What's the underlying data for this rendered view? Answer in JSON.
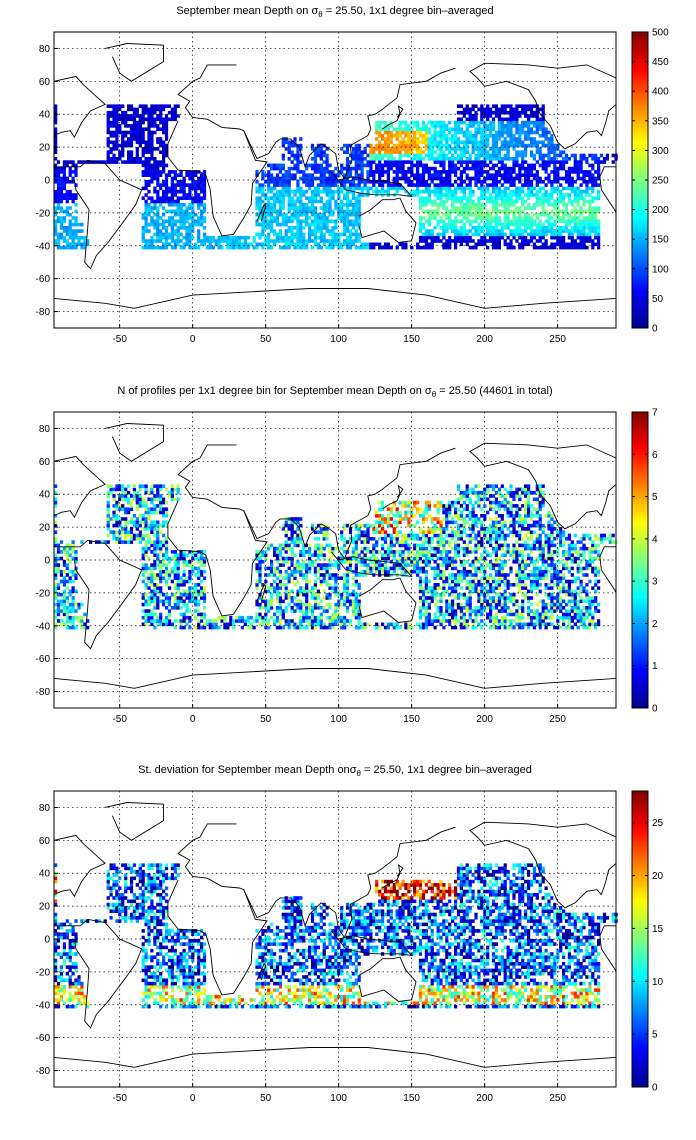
{
  "colors": {
    "jet": [
      "#00008f",
      "#0000ff",
      "#0080ff",
      "#00ffff",
      "#80ff80",
      "#ffff00",
      "#ff8000",
      "#ff0000",
      "#800000"
    ]
  },
  "chart_data": [
    {
      "type": "heatmap",
      "title_pre": "September mean Depth on ",
      "title_sigma": "σ",
      "title_sub": "θ",
      "title_post": " = 25.50, 1x1 degree bin–averaged",
      "xlim": [
        -95,
        290
      ],
      "ylim": [
        -90,
        90
      ],
      "xticks": [
        -50,
        0,
        50,
        100,
        150,
        200,
        250
      ],
      "yticks": [
        80,
        60,
        40,
        20,
        0,
        -20,
        -40,
        -60,
        -80
      ],
      "colorbar": {
        "min": 0,
        "max": 500,
        "ticks": [
          500,
          450,
          400,
          350,
          300,
          250,
          200,
          150,
          100,
          50,
          0
        ]
      },
      "pattern": "mean"
    },
    {
      "type": "heatmap",
      "title_pre": "N of profiles per 1x1 degree bin for September mean Depth on ",
      "title_sigma": "σ",
      "title_sub": "θ",
      "title_post": " = 25.50 (44601 in total)",
      "xlim": [
        -95,
        290
      ],
      "ylim": [
        -90,
        90
      ],
      "xticks": [
        -50,
        0,
        50,
        100,
        150,
        200,
        250
      ],
      "yticks": [
        80,
        60,
        40,
        20,
        0,
        -20,
        -40,
        -60,
        -80
      ],
      "colorbar": {
        "min": 0,
        "max": 7,
        "ticks": [
          7,
          6,
          5,
          4,
          3,
          2,
          1,
          0
        ]
      },
      "pattern": "count"
    },
    {
      "type": "heatmap",
      "title_pre": "St. deviation for September mean Depth on",
      "title_sigma": "σ",
      "title_sub": "θ",
      "title_post": " = 25.50, 1x1 degree bin–averaged",
      "xlim": [
        -95,
        290
      ],
      "ylim": [
        -90,
        90
      ],
      "xticks": [
        -50,
        0,
        50,
        100,
        150,
        200,
        250
      ],
      "yticks": [
        80,
        60,
        40,
        20,
        0,
        -20,
        -40,
        -60,
        -80
      ],
      "colorbar": {
        "min": 0,
        "max": 28,
        "ticks": [
          25,
          20,
          15,
          10,
          5,
          0
        ]
      },
      "pattern": "std"
    }
  ]
}
